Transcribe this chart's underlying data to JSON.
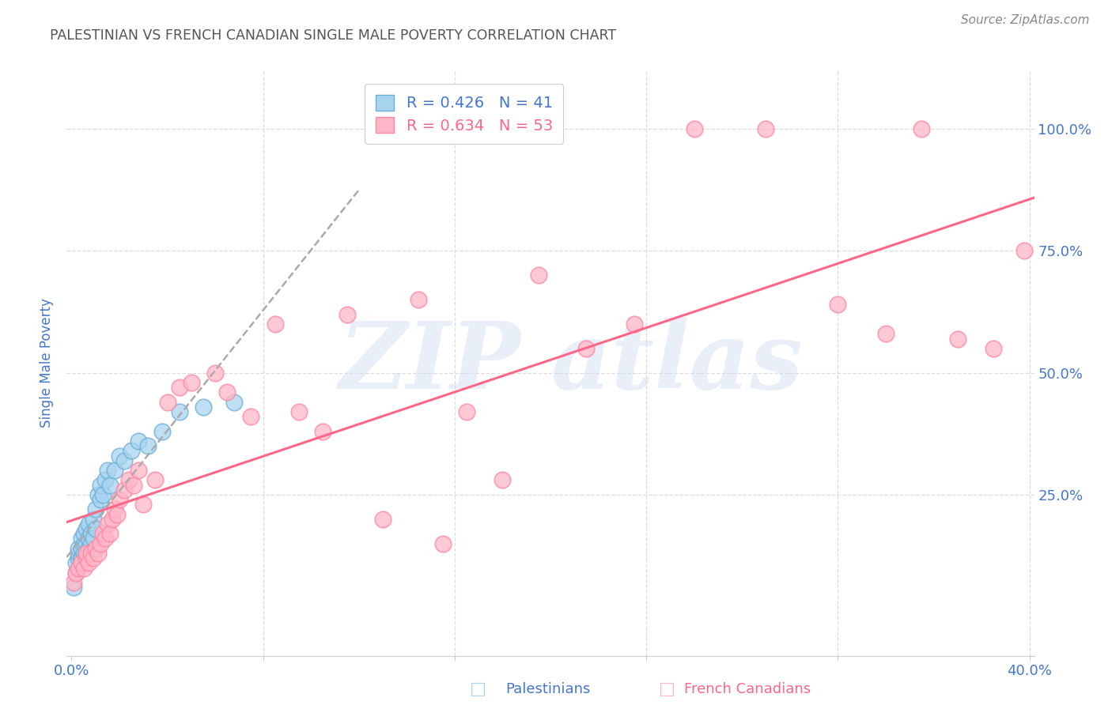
{
  "title": "PALESTINIAN VS FRENCH CANADIAN SINGLE MALE POVERTY CORRELATION CHART",
  "source": "Source: ZipAtlas.com",
  "ylabel": "Single Male Poverty",
  "watermark_line1": "ZIP",
  "watermark_line2": "atlas",
  "legend_blue_r": "R = 0.426",
  "legend_blue_n": "N = 41",
  "legend_pink_r": "R = 0.634",
  "legend_pink_n": "N = 53",
  "blue_fill_color": "#A8D4F0",
  "pink_fill_color": "#FFB6C8",
  "blue_edge_color": "#6AAED6",
  "pink_edge_color": "#FF85A0",
  "blue_line_color": "#5599DD",
  "pink_line_color": "#FF6688",
  "gray_dash_color": "#AAAAAA",
  "axis_label_color": "#4477CC",
  "title_color": "#555555",
  "source_color": "#888888",
  "background_color": "#FFFFFF",
  "grid_color": "#DDDDDD",
  "xlim": [
    -0.002,
    0.402
  ],
  "ylim": [
    -0.08,
    1.12
  ],
  "xticks": [
    0.0,
    0.4
  ],
  "xtick_labels": [
    "0.0%",
    "40.0%"
  ],
  "yticks": [
    0.0,
    0.25,
    0.5,
    0.75,
    1.0
  ],
  "ytick_labels": [
    "",
    "25.0%",
    "50.0%",
    "75.0%",
    "100.0%"
  ],
  "blue_scatter_x": [
    0.001,
    0.002,
    0.002,
    0.003,
    0.003,
    0.003,
    0.004,
    0.004,
    0.004,
    0.005,
    0.005,
    0.005,
    0.006,
    0.006,
    0.006,
    0.007,
    0.007,
    0.007,
    0.008,
    0.008,
    0.009,
    0.009,
    0.01,
    0.01,
    0.011,
    0.012,
    0.012,
    0.013,
    0.014,
    0.015,
    0.016,
    0.018,
    0.02,
    0.022,
    0.025,
    0.028,
    0.032,
    0.038,
    0.045,
    0.055,
    0.068
  ],
  "blue_scatter_y": [
    0.06,
    0.09,
    0.11,
    0.12,
    0.13,
    0.14,
    0.12,
    0.14,
    0.16,
    0.13,
    0.15,
    0.17,
    0.13,
    0.15,
    0.18,
    0.14,
    0.16,
    0.19,
    0.15,
    0.17,
    0.16,
    0.2,
    0.18,
    0.22,
    0.25,
    0.24,
    0.27,
    0.25,
    0.28,
    0.3,
    0.27,
    0.3,
    0.33,
    0.32,
    0.34,
    0.36,
    0.35,
    0.38,
    0.42,
    0.43,
    0.44
  ],
  "pink_scatter_x": [
    0.001,
    0.002,
    0.003,
    0.004,
    0.005,
    0.006,
    0.006,
    0.007,
    0.008,
    0.009,
    0.01,
    0.011,
    0.012,
    0.013,
    0.014,
    0.015,
    0.016,
    0.017,
    0.018,
    0.019,
    0.02,
    0.022,
    0.024,
    0.026,
    0.028,
    0.03,
    0.035,
    0.04,
    0.045,
    0.05,
    0.06,
    0.065,
    0.075,
    0.085,
    0.095,
    0.105,
    0.115,
    0.13,
    0.145,
    0.155,
    0.165,
    0.18,
    0.195,
    0.215,
    0.235,
    0.26,
    0.29,
    0.32,
    0.34,
    0.355,
    0.37,
    0.385,
    0.398
  ],
  "pink_scatter_y": [
    0.07,
    0.09,
    0.1,
    0.11,
    0.1,
    0.12,
    0.13,
    0.11,
    0.13,
    0.12,
    0.14,
    0.13,
    0.15,
    0.17,
    0.16,
    0.19,
    0.17,
    0.2,
    0.22,
    0.21,
    0.24,
    0.26,
    0.28,
    0.27,
    0.3,
    0.23,
    0.28,
    0.44,
    0.47,
    0.48,
    0.5,
    0.46,
    0.41,
    0.6,
    0.42,
    0.38,
    0.62,
    0.2,
    0.65,
    0.15,
    0.42,
    0.28,
    0.7,
    0.55,
    0.6,
    1.0,
    1.0,
    0.64,
    0.58,
    1.0,
    0.57,
    0.55,
    0.75
  ]
}
